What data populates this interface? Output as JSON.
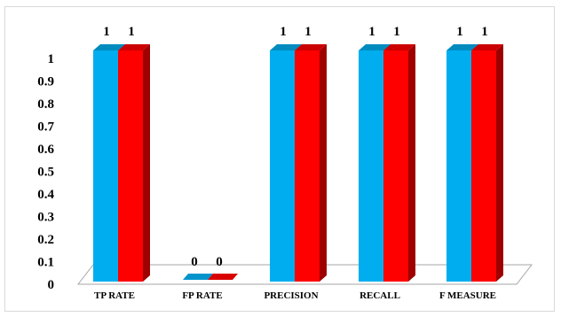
{
  "chart_data": {
    "type": "bar",
    "categories": [
      "TP RATE",
      "FP RATE",
      "PRECISION",
      "RECALL",
      "F MEASURE"
    ],
    "series": [
      {
        "values": [
          1,
          0,
          1,
          1,
          1
        ],
        "color": "#00aeef"
      },
      {
        "values": [
          1,
          0,
          1,
          1,
          1
        ],
        "color": "#ff0000"
      }
    ],
    "data_labels": [
      [
        "1",
        "0",
        "1",
        "1",
        "1"
      ],
      [
        "1",
        "0",
        "1",
        "1",
        "1"
      ]
    ],
    "y_ticks": [
      "0",
      "0.1",
      "0.2",
      "0.3",
      "0.4",
      "0.5",
      "0.6",
      "0.7",
      "0.8",
      "0.9",
      "1"
    ],
    "ylim": [
      0,
      1
    ],
    "title": "",
    "xlabel": "",
    "ylabel": "",
    "grid": false,
    "legend": "none",
    "style": "3d-clustered"
  }
}
